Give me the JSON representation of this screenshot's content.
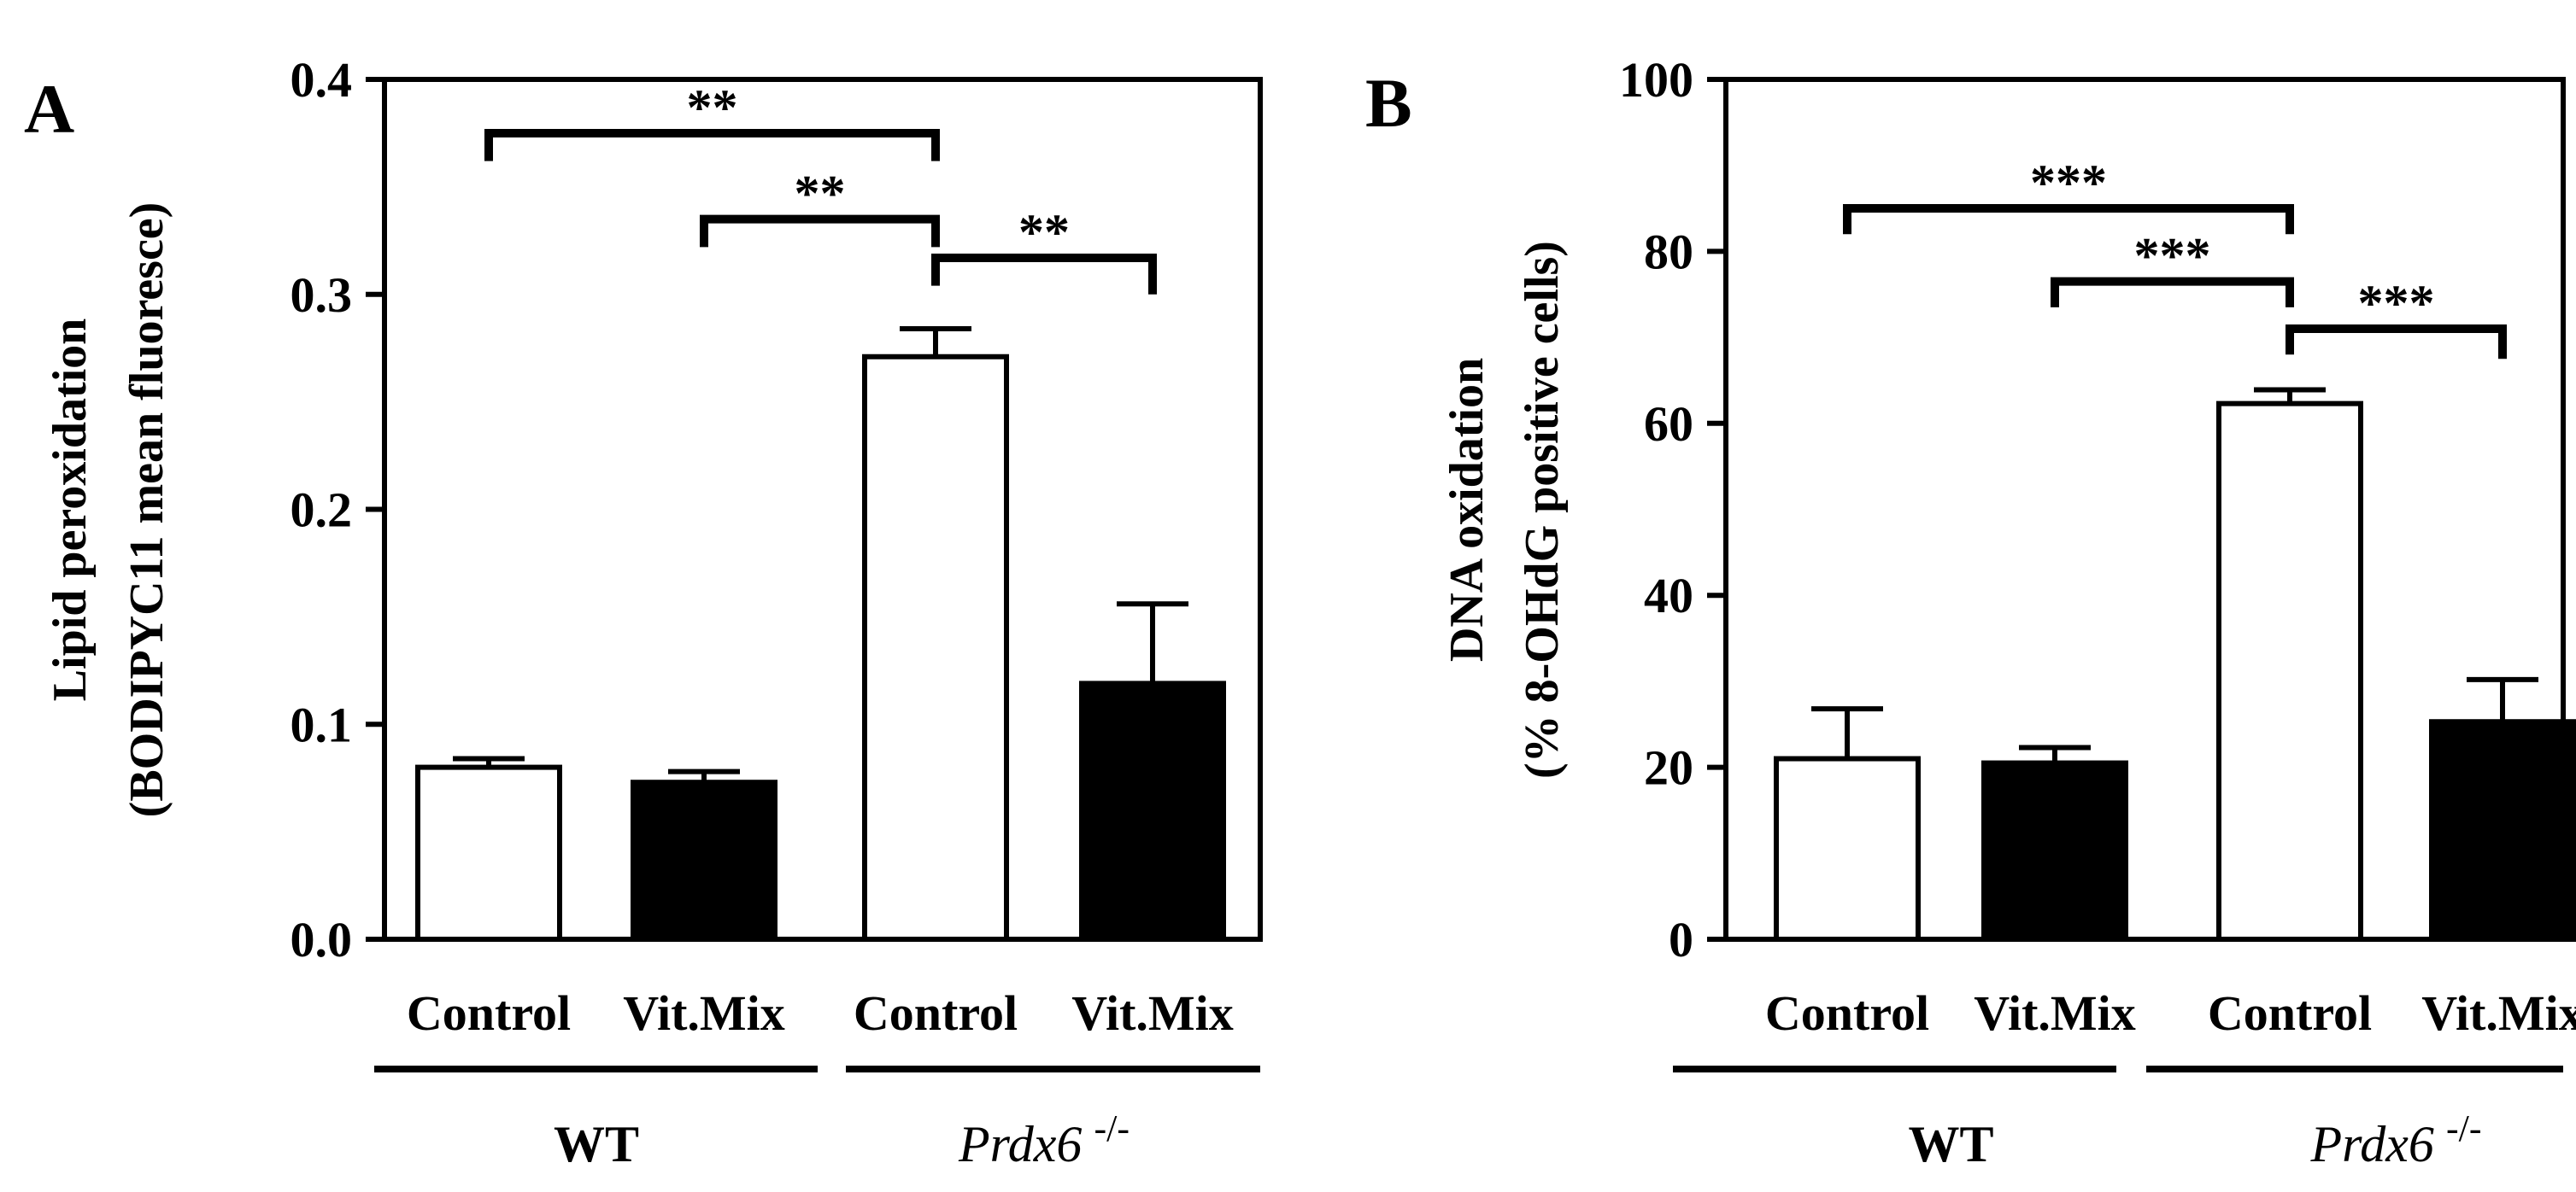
{
  "chart_data": [
    {
      "panel": "A",
      "type": "bar",
      "categories": [
        "Control",
        "Vit.Mix",
        "Control",
        "Vit.Mix"
      ],
      "values": [
        0.08,
        0.073,
        0.271,
        0.119
      ],
      "errors": [
        0.004,
        0.005,
        0.013,
        0.037
      ],
      "fills": [
        "open",
        "filled",
        "open",
        "filled"
      ],
      "groups": [
        {
          "label": "WT",
          "italic": false,
          "sup": "",
          "from": 0,
          "to": 1
        },
        {
          "label": "Prdx6",
          "italic": true,
          "sup": "-/-",
          "from": 2,
          "to": 3
        }
      ],
      "ylabel_lines": [
        "Lipid peroxidation",
        "(BODIPYC11 mean fluoresce)"
      ],
      "ylim": [
        0,
        0.4
      ],
      "yticks": [
        0,
        0.1,
        0.2,
        0.3,
        0.4
      ],
      "ytick_labels": [
        "0.0",
        "0.1",
        "0.2",
        "0.3",
        "0.4"
      ],
      "significance": [
        {
          "from": 0,
          "to": 2,
          "label": "**",
          "y": 0.375,
          "dropLeft": 0.013,
          "dropRight": 0.013
        },
        {
          "from": 1,
          "to": 2,
          "label": "**",
          "y": 0.335,
          "dropLeft": 0.013,
          "dropRight": 0.013
        },
        {
          "from": 2,
          "to": 3,
          "label": "**",
          "y": 0.317,
          "dropLeft": 0.013,
          "dropRight": 0.017
        }
      ]
    },
    {
      "panel": "B",
      "type": "bar",
      "categories": [
        "Control",
        "Vit.Mix",
        "Control",
        "Vit.Mix"
      ],
      "values": [
        21.0,
        20.5,
        62.3,
        25.3
      ],
      "errors": [
        5.8,
        1.8,
        1.6,
        4.9
      ],
      "fills": [
        "open",
        "filled",
        "open",
        "filled"
      ],
      "groups": [
        {
          "label": "WT",
          "italic": false,
          "sup": "",
          "from": 0,
          "to": 1
        },
        {
          "label": "Prdx6",
          "italic": true,
          "sup": "-/-",
          "from": 2,
          "to": 3
        }
      ],
      "ylabel_lines": [
        "DNA oxidation",
        "(% 8-OHdG positive cells)"
      ],
      "ylim": [
        0,
        100
      ],
      "yticks": [
        0,
        20,
        40,
        60,
        80,
        100
      ],
      "ytick_labels": [
        "0",
        "20",
        "40",
        "60",
        "80",
        "100"
      ],
      "significance": [
        {
          "from": 0,
          "to": 2,
          "label": "***",
          "y": 85,
          "dropLeft": 3,
          "dropRight": 3
        },
        {
          "from": 1,
          "to": 2,
          "label": "***",
          "y": 76.5,
          "dropLeft": 3,
          "dropRight": 3
        },
        {
          "from": 2,
          "to": 3,
          "label": "***",
          "y": 71,
          "dropLeft": 3,
          "dropRight": 3.5
        }
      ]
    }
  ]
}
